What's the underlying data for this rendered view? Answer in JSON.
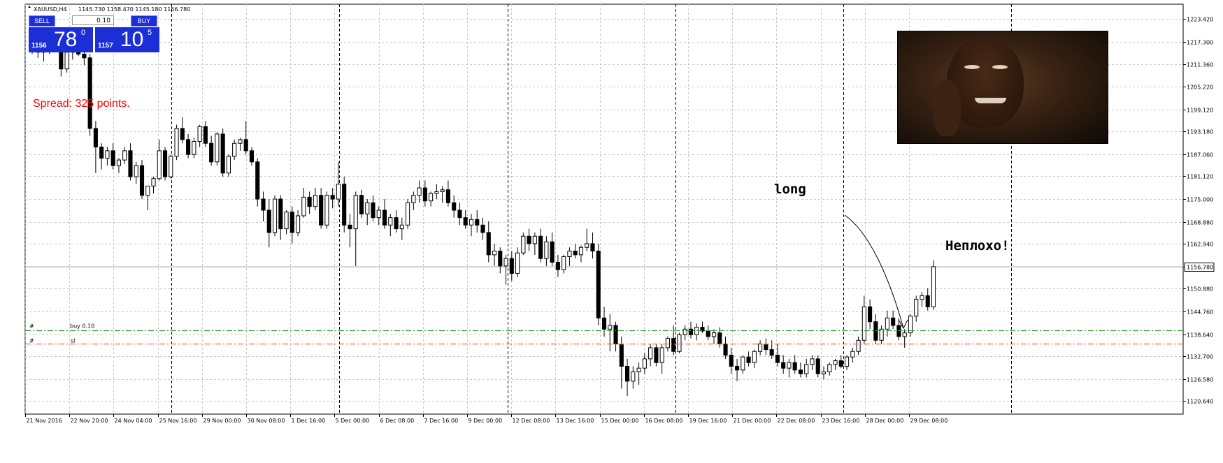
{
  "header": {
    "symbol_line": "XAUUSD,H4",
    "ohlc": "1145.730 1158.470 1145.180 1156.780"
  },
  "trade_panel": {
    "sell_label": "SELL",
    "buy_label": "BUY",
    "lot": "0.10",
    "sell_price_small": "1156",
    "sell_price_big": "78",
    "sell_price_sup": "0",
    "buy_price_small": "1157",
    "buy_price_big": "10",
    "buy_price_sup": "5"
  },
  "spread_text": "Spread: 325 points.",
  "annotations": {
    "long": "long",
    "neplokho": "Неплохо!"
  },
  "order_lines": {
    "buy_label": "buy 0.10",
    "sl_label": "sl",
    "hash1": "#",
    "hash2": "#"
  },
  "colors": {
    "up_candle": "#ffffff",
    "down_candle": "#000000",
    "tp_line": "#2aa02a",
    "sl_line": "#ff6a3d",
    "panel": "#1c2fd6"
  },
  "chart_data": {
    "type": "candlestick",
    "symbol": "XAUUSD",
    "timeframe": "H4",
    "current_price": 1156.78,
    "y_ticks": [
      1223.42,
      1217.3,
      1211.36,
      1205.22,
      1199.12,
      1193.18,
      1187.06,
      1181.12,
      1175.0,
      1168.88,
      1162.94,
      1156.78,
      1150.88,
      1144.76,
      1138.64,
      1132.7,
      1126.58,
      1120.64
    ],
    "y_tick_labels": [
      "1223.420",
      "1217.300",
      "1211.360",
      "1205.220",
      "1199.120",
      "1193.180",
      "1187.060",
      "1181.120",
      "1175.000",
      "1168.880",
      "1162.940",
      "1156.780",
      "1150.880",
      "1144.760",
      "1138.640",
      "1132.700",
      "1126.580",
      "1120.640"
    ],
    "ylim": [
      1119.2,
      1224.8
    ],
    "x_tick_labels": [
      "21 Nov 2016",
      "22 Nov 20:00",
      "24 Nov 04:00",
      "25 Nov 16:00",
      "29 Nov 00:00",
      "30 Nov 08:00",
      "1 Dec 16:00",
      "5 Dec 00:00",
      "6 Dec 08:00",
      "7 Dec 16:00",
      "9 Dec 00:00",
      "12 Dec 08:00",
      "13 Dec 16:00",
      "15 Dec 00:00",
      "16 Dec 08:00",
      "19 Dec 16:00",
      "21 Dec 00:00",
      "22 Dec 08:00",
      "23 Dec 16:00",
      "28 Dec 00:00",
      "29 Dec 08:00"
    ],
    "buy_level": 1139.6,
    "sl_level": 1136.0,
    "candles": [
      [
        1217.0,
        1218.5,
        1214.0,
        1215.0
      ],
      [
        1215.0,
        1216.5,
        1213.0,
        1214.5
      ],
      [
        1214.5,
        1216.0,
        1212.0,
        1215.5
      ],
      [
        1215.5,
        1217.0,
        1214.0,
        1216.0
      ],
      [
        1216.0,
        1217.5,
        1214.5,
        1215.0
      ],
      [
        1215.0,
        1216.0,
        1208.0,
        1210.0
      ],
      [
        1210.0,
        1215.5,
        1209.0,
        1214.5
      ],
      [
        1214.5,
        1216.0,
        1212.5,
        1215.5
      ],
      [
        1215.5,
        1217.0,
        1213.5,
        1214.0
      ],
      [
        1214.0,
        1215.5,
        1211.0,
        1213.0
      ],
      [
        1213.0,
        1214.0,
        1192.0,
        1194.0
      ],
      [
        1194.0,
        1196.0,
        1182.0,
        1189.0
      ],
      [
        1189.0,
        1190.0,
        1183.0,
        1186.0
      ],
      [
        1186.0,
        1189.0,
        1184.0,
        1188.0
      ],
      [
        1188.0,
        1190.0,
        1183.0,
        1184.0
      ],
      [
        1184.0,
        1186.0,
        1182.0,
        1185.5
      ],
      [
        1185.5,
        1189.0,
        1184.5,
        1188.0
      ],
      [
        1188.0,
        1190.0,
        1180.0,
        1181.0
      ],
      [
        1181.0,
        1185.0,
        1179.0,
        1184.0
      ],
      [
        1184.0,
        1185.5,
        1175.0,
        1176.0
      ],
      [
        1176.0,
        1178.0,
        1172.0,
        1178.5
      ],
      [
        1178.5,
        1181.0,
        1176.5,
        1180.5
      ],
      [
        1180.5,
        1191.0,
        1180.0,
        1188.0
      ],
      [
        1188.0,
        1189.0,
        1180.0,
        1181.0
      ],
      [
        1181.0,
        1187.0,
        1180.5,
        1186.5
      ],
      [
        1186.5,
        1195.0,
        1185.5,
        1194.0
      ],
      [
        1194.0,
        1197.0,
        1190.0,
        1191.0
      ],
      [
        1191.0,
        1192.5,
        1186.0,
        1187.0
      ],
      [
        1187.0,
        1191.5,
        1186.0,
        1190.5
      ],
      [
        1190.5,
        1195.0,
        1189.0,
        1194.5
      ],
      [
        1194.5,
        1196.0,
        1189.0,
        1190.0
      ],
      [
        1190.0,
        1192.0,
        1184.0,
        1185.0
      ],
      [
        1185.0,
        1193.0,
        1184.0,
        1192.5
      ],
      [
        1192.5,
        1194.0,
        1181.0,
        1182.0
      ],
      [
        1182.0,
        1187.0,
        1181.0,
        1186.5
      ],
      [
        1186.5,
        1191.0,
        1185.5,
        1190.0
      ],
      [
        1190.0,
        1191.5,
        1188.0,
        1191.0
      ],
      [
        1191.0,
        1196.0,
        1187.0,
        1188.0
      ],
      [
        1188.0,
        1189.0,
        1184.0,
        1185.0
      ],
      [
        1185.0,
        1186.0,
        1173.0,
        1175.0
      ],
      [
        1175.0,
        1177.0,
        1169.0,
        1172.0
      ],
      [
        1172.0,
        1175.0,
        1162.0,
        1166.0
      ],
      [
        1166.0,
        1176.0,
        1165.0,
        1175.0
      ],
      [
        1175.0,
        1176.0,
        1164.0,
        1167.0
      ],
      [
        1167.0,
        1172.0,
        1165.5,
        1171.5
      ],
      [
        1171.5,
        1173.0,
        1163.0,
        1166.0
      ],
      [
        1166.0,
        1172.0,
        1165.0,
        1170.5
      ],
      [
        1170.5,
        1178.0,
        1170.0,
        1175.5
      ],
      [
        1175.5,
        1177.0,
        1171.0,
        1173.0
      ],
      [
        1173.0,
        1178.0,
        1172.0,
        1176.0
      ],
      [
        1176.0,
        1178.0,
        1167.0,
        1168.0
      ],
      [
        1168.0,
        1177.0,
        1167.0,
        1176.0
      ],
      [
        1176.0,
        1178.0,
        1172.5,
        1175.0
      ],
      [
        1175.0,
        1185.0,
        1173.0,
        1179.0
      ],
      [
        1179.0,
        1181.0,
        1166.0,
        1168.0
      ],
      [
        1168.0,
        1171.0,
        1162.0,
        1167.0
      ],
      [
        1167.0,
        1177.0,
        1157.0,
        1176.0
      ],
      [
        1176.0,
        1177.5,
        1170.0,
        1171.0
      ],
      [
        1171.0,
        1175.0,
        1168.0,
        1174.0
      ],
      [
        1174.0,
        1176.0,
        1169.0,
        1170.0
      ],
      [
        1170.0,
        1173.0,
        1168.0,
        1172.0
      ],
      [
        1172.0,
        1175.0,
        1167.0,
        1168.0
      ],
      [
        1168.0,
        1171.0,
        1165.0,
        1170.0
      ],
      [
        1170.0,
        1172.0,
        1166.0,
        1167.0
      ],
      [
        1167.0,
        1170.0,
        1164.0,
        1168.0
      ],
      [
        1168.0,
        1175.0,
        1167.0,
        1174.0
      ],
      [
        1174.0,
        1177.0,
        1172.0,
        1176.0
      ],
      [
        1176.0,
        1180.0,
        1174.0,
        1178.0
      ],
      [
        1178.0,
        1180.0,
        1173.0,
        1174.5
      ],
      [
        1174.5,
        1177.0,
        1173.0,
        1176.5
      ],
      [
        1176.5,
        1179.0,
        1175.0,
        1177.0
      ],
      [
        1177.0,
        1178.5,
        1174.0,
        1177.5
      ],
      [
        1177.5,
        1180.0,
        1173.0,
        1174.0
      ],
      [
        1174.0,
        1176.0,
        1170.0,
        1172.0
      ],
      [
        1172.0,
        1174.0,
        1168.0,
        1170.0
      ],
      [
        1170.0,
        1172.0,
        1167.0,
        1168.0
      ],
      [
        1168.0,
        1171.0,
        1165.0,
        1169.5
      ],
      [
        1169.5,
        1172.0,
        1166.0,
        1168.0
      ],
      [
        1168.0,
        1170.0,
        1164.0,
        1166.0
      ],
      [
        1166.0,
        1169.0,
        1158.0,
        1160.0
      ],
      [
        1160.0,
        1163.0,
        1157.0,
        1161.0
      ],
      [
        1161.0,
        1162.0,
        1155.0,
        1157.0
      ],
      [
        1157.0,
        1160.0,
        1152.0,
        1159.0
      ],
      [
        1159.0,
        1161.0,
        1153.0,
        1155.0
      ],
      [
        1155.0,
        1162.0,
        1154.0,
        1160.5
      ],
      [
        1160.5,
        1166.0,
        1160.0,
        1165.0
      ],
      [
        1165.0,
        1167.0,
        1161.0,
        1163.0
      ],
      [
        1163.0,
        1166.0,
        1160.0,
        1165.0
      ],
      [
        1165.0,
        1167.0,
        1158.0,
        1159.0
      ],
      [
        1159.0,
        1165.0,
        1157.0,
        1163.5
      ],
      [
        1163.5,
        1166.0,
        1157.0,
        1158.0
      ],
      [
        1158.0,
        1160.0,
        1154.0,
        1156.0
      ],
      [
        1156.0,
        1160.0,
        1155.0,
        1159.5
      ],
      [
        1159.5,
        1162.0,
        1157.0,
        1161.0
      ],
      [
        1161.0,
        1163.0,
        1159.0,
        1160.0
      ],
      [
        1160.0,
        1162.5,
        1158.0,
        1162.0
      ],
      [
        1162.0,
        1167.0,
        1161.0,
        1163.0
      ],
      [
        1163.0,
        1166.0,
        1159.0,
        1161.0
      ],
      [
        1161.0,
        1163.0,
        1141.0,
        1143.0
      ],
      [
        1143.0,
        1146.0,
        1138.0,
        1140.0
      ],
      [
        1140.0,
        1144.0,
        1134.0,
        1141.0
      ],
      [
        1141.0,
        1142.0,
        1134.0,
        1136.0
      ],
      [
        1136.0,
        1138.0,
        1124.0,
        1130.0
      ],
      [
        1130.0,
        1132.0,
        1122.0,
        1126.0
      ],
      [
        1126.0,
        1130.0,
        1124.0,
        1128.5
      ],
      [
        1128.5,
        1131.0,
        1125.0,
        1129.5
      ],
      [
        1129.5,
        1133.5,
        1128.0,
        1132.0
      ],
      [
        1132.0,
        1136.0,
        1130.0,
        1135.0
      ],
      [
        1135.0,
        1136.0,
        1130.0,
        1131.0
      ],
      [
        1131.0,
        1136.0,
        1128.0,
        1135.0
      ],
      [
        1135.0,
        1138.0,
        1134.0,
        1137.5
      ],
      [
        1137.5,
        1141.0,
        1133.0,
        1134.0
      ],
      [
        1134.0,
        1139.0,
        1133.5,
        1138.5
      ],
      [
        1138.5,
        1141.0,
        1137.0,
        1140.0
      ],
      [
        1140.0,
        1142.0,
        1137.5,
        1138.5
      ],
      [
        1138.5,
        1141.5,
        1137.0,
        1140.5
      ],
      [
        1140.5,
        1142.0,
        1139.0,
        1139.5
      ],
      [
        1139.5,
        1141.0,
        1137.0,
        1138.0
      ],
      [
        1138.0,
        1140.0,
        1136.0,
        1139.0
      ],
      [
        1139.0,
        1140.5,
        1135.0,
        1136.0
      ],
      [
        1136.0,
        1138.0,
        1132.0,
        1133.0
      ],
      [
        1133.0,
        1135.0,
        1128.0,
        1130.0
      ],
      [
        1130.0,
        1132.0,
        1126.0,
        1129.0
      ],
      [
        1129.0,
        1133.0,
        1128.0,
        1132.5
      ],
      [
        1132.5,
        1134.0,
        1130.0,
        1131.0
      ],
      [
        1131.0,
        1134.5,
        1129.5,
        1134.0
      ],
      [
        1134.0,
        1137.0,
        1133.0,
        1136.0
      ],
      [
        1136.0,
        1137.5,
        1133.0,
        1134.5
      ],
      [
        1134.5,
        1137.0,
        1132.0,
        1133.0
      ],
      [
        1133.0,
        1136.0,
        1130.0,
        1131.0
      ],
      [
        1131.0,
        1133.0,
        1128.0,
        1129.5
      ],
      [
        1129.5,
        1132.0,
        1127.0,
        1131.0
      ],
      [
        1131.0,
        1133.0,
        1128.0,
        1129.0
      ],
      [
        1129.0,
        1131.0,
        1127.0,
        1128.0
      ],
      [
        1128.0,
        1132.0,
        1127.0,
        1130.5
      ],
      [
        1130.5,
        1133.0,
        1129.0,
        1132.0
      ],
      [
        1132.0,
        1133.0,
        1127.0,
        1128.0
      ],
      [
        1128.0,
        1130.0,
        1126.5,
        1128.5
      ],
      [
        1128.5,
        1131.0,
        1127.5,
        1130.5
      ],
      [
        1130.5,
        1132.0,
        1129.0,
        1131.5
      ],
      [
        1131.5,
        1133.0,
        1129.5,
        1130.0
      ],
      [
        1130.0,
        1133.0,
        1129.0,
        1132.5
      ],
      [
        1132.5,
        1135.0,
        1131.0,
        1134.0
      ],
      [
        1134.0,
        1138.0,
        1133.0,
        1137.0
      ],
      [
        1137.0,
        1149.0,
        1136.0,
        1146.0
      ],
      [
        1146.0,
        1148.0,
        1140.0,
        1142.0
      ],
      [
        1142.0,
        1144.0,
        1136.0,
        1137.0
      ],
      [
        1137.0,
        1141.0,
        1136.0,
        1140.0
      ],
      [
        1140.0,
        1145.0,
        1138.0,
        1143.0
      ],
      [
        1143.0,
        1145.0,
        1140.0,
        1141.0
      ],
      [
        1141.0,
        1143.0,
        1137.0,
        1138.0
      ],
      [
        1138.0,
        1140.0,
        1135.0,
        1139.0
      ],
      [
        1139.0,
        1144.0,
        1138.0,
        1143.5
      ],
      [
        1143.5,
        1149.0,
        1142.0,
        1148.0
      ],
      [
        1148.0,
        1150.0,
        1146.0,
        1149.0
      ],
      [
        1149.0,
        1151.0,
        1145.0,
        1146.0
      ],
      [
        1146.0,
        1158.5,
        1145.2,
        1156.8
      ]
    ]
  }
}
